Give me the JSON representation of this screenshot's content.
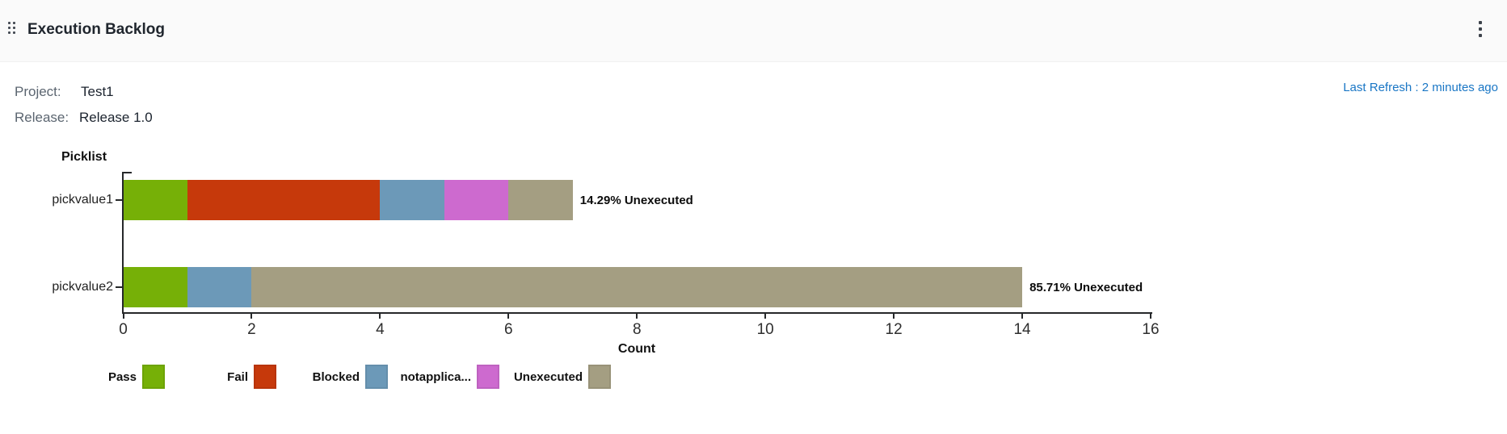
{
  "widget": {
    "title": "Execution Backlog",
    "drag_icon": "drag-handle-icon",
    "menu_icon": "kebab-menu-icon"
  },
  "info": {
    "project_label": "Project:",
    "project_value": "Test1",
    "release_label": "Release:",
    "release_value": "Release 1.0",
    "last_refresh": "Last Refresh : 2 minutes ago"
  },
  "colors": {
    "header_bg": "#fafafa",
    "link_blue": "#1976c5",
    "axis": "#26282a",
    "pass": "#76B007",
    "fail": "#C6390B",
    "blocked": "#6C99B8",
    "notapplicable": "#CD6ACF",
    "unexecuted": "#A49E82"
  },
  "chart_data": {
    "type": "bar",
    "orientation": "horizontal",
    "stacked": true,
    "title": "",
    "xlabel": "Count",
    "ylabel": "Picklist",
    "xlim": [
      0,
      16
    ],
    "xticks": [
      0,
      2,
      4,
      6,
      8,
      10,
      12,
      14,
      16
    ],
    "grid": false,
    "legend_position": "bottom",
    "categories": [
      "pickvalue1",
      "pickvalue2"
    ],
    "series": [
      {
        "name": "Pass",
        "color": "#76B007",
        "values": [
          1,
          1
        ]
      },
      {
        "name": "Fail",
        "color": "#C6390B",
        "values": [
          3,
          0
        ]
      },
      {
        "name": "Blocked",
        "color": "#6C99B8",
        "values": [
          1,
          1
        ]
      },
      {
        "name": "notapplica...",
        "color": "#CD6ACF",
        "values": [
          1,
          0
        ]
      },
      {
        "name": "Unexecuted",
        "color": "#A49E82",
        "values": [
          1,
          12
        ]
      }
    ],
    "totals": [
      7,
      14
    ],
    "bar_labels": [
      "14.29% Unexecuted",
      "85.71% Unexecuted"
    ]
  }
}
